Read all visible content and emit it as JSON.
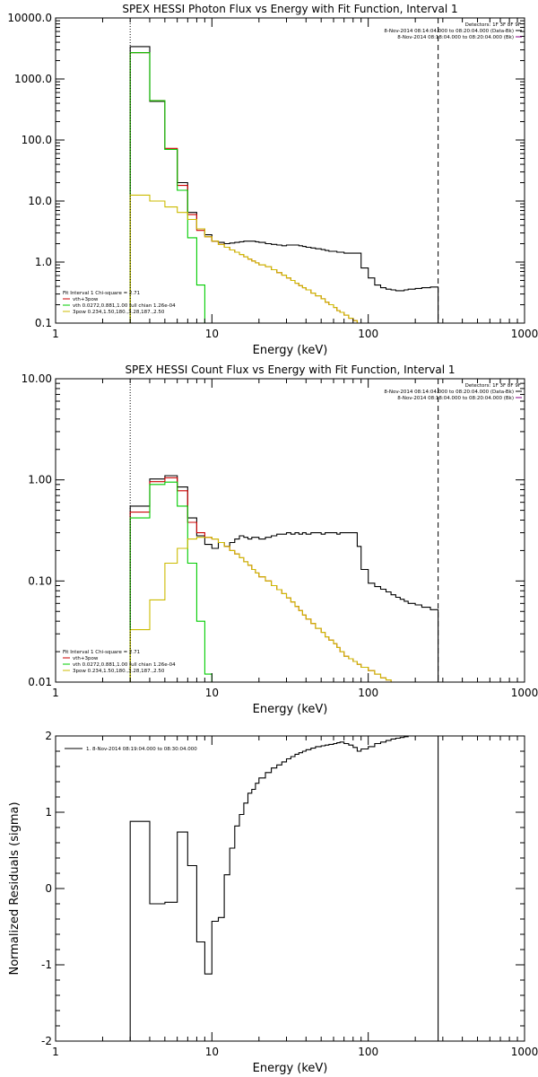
{
  "chart_data": [
    {
      "type": "line",
      "title": "SPEX HESSI Photon Flux vs Energy with Fit Function, Interval 1",
      "xlabel": "Energy (keV)",
      "ylabel": "",
      "xscale": "log",
      "yscale": "log",
      "xlim": [
        1,
        1000
      ],
      "ylim": [
        0.1,
        10000
      ],
      "xticks": [
        {
          "v": 1,
          "label": "1"
        },
        {
          "v": 10,
          "label": "10"
        },
        {
          "v": 100,
          "label": "100"
        },
        {
          "v": 1000,
          "label": "1000"
        }
      ],
      "yticks": [
        {
          "v": 0.1,
          "label": "0.1"
        },
        {
          "v": 1,
          "label": "1.0"
        },
        {
          "v": 10,
          "label": "10.0"
        },
        {
          "v": 100,
          "label": "100.0"
        },
        {
          "v": 1000,
          "label": "1000.0"
        },
        {
          "v": 10000,
          "label": "10000.0"
        }
      ],
      "dotted_line_x": 3,
      "dashed_line_x": 280,
      "annotations": [
        "Detectors: 1F 3F 8F 9F",
        "8-Nov-2014 08:14:04.000 to 08:20:04.000 (Data-Bk)",
        "8-Nov-2014 08:18:04.000 to 08:20:04.000 (Bk)"
      ],
      "legend_title": "Fit Interval  1    Chi-square = 2.71",
      "legend": [
        {
          "label": "vth+3pow",
          "color": "#cc0000"
        },
        {
          "label": "vth 0.0272,0.881,1.00  full chian 1.26e-04",
          "color": "#00cc00"
        },
        {
          "label": "3pow 0.234,1.50,180.,3.28,187.,2.50",
          "color": "#ccbb00"
        }
      ],
      "series": [
        {
          "color": "#000000",
          "edges": [
            3,
            4,
            5,
            6,
            7,
            8,
            9,
            10,
            11,
            12,
            13,
            14,
            15,
            16,
            17,
            18,
            19,
            20,
            22,
            24,
            26,
            28,
            30,
            32,
            34,
            36,
            38,
            40,
            43,
            46,
            50,
            53,
            56,
            60,
            63,
            66,
            70,
            75,
            80,
            85,
            90,
            100,
            110,
            120,
            130,
            140,
            150,
            160,
            170,
            180,
            200,
            220,
            250,
            280
          ],
          "values": [
            3400,
            430,
            70,
            20,
            6.5,
            3.5,
            2.8,
            2.2,
            2.1,
            2.0,
            2.05,
            2.1,
            2.15,
            2.2,
            2.2,
            2.2,
            2.15,
            2.1,
            2.0,
            1.95,
            1.9,
            1.85,
            1.9,
            1.9,
            1.9,
            1.85,
            1.8,
            1.75,
            1.7,
            1.65,
            1.6,
            1.55,
            1.5,
            1.5,
            1.45,
            1.45,
            1.4,
            1.4,
            1.4,
            1.4,
            0.8,
            0.55,
            0.42,
            0.38,
            0.36,
            0.35,
            0.34,
            0.34,
            0.35,
            0.36,
            0.37,
            0.38,
            0.39
          ]
        },
        {
          "color": "#cc0000",
          "edges": [
            3,
            4,
            5,
            6,
            7,
            8,
            9,
            10,
            11,
            12,
            13,
            14,
            15,
            16,
            17,
            18,
            19,
            20,
            22,
            24,
            26,
            28,
            30,
            32,
            34,
            36,
            38,
            40,
            43,
            46,
            50,
            53,
            56,
            60,
            63,
            66,
            70,
            75,
            80,
            85,
            90,
            100
          ],
          "values": [
            2700,
            440,
            73,
            18,
            6.0,
            3.3,
            2.6,
            2.2,
            1.95,
            1.75,
            1.58,
            1.45,
            1.33,
            1.22,
            1.12,
            1.04,
            0.97,
            0.9,
            0.84,
            0.75,
            0.67,
            0.61,
            0.55,
            0.5,
            0.45,
            0.41,
            0.38,
            0.35,
            0.31,
            0.28,
            0.25,
            0.22,
            0.2,
            0.18,
            0.16,
            0.15,
            0.135,
            0.12,
            0.11,
            0.1,
            0.1
          ]
        },
        {
          "color": "#00cc00",
          "edges": [
            3,
            4,
            5,
            6,
            7,
            8,
            9
          ],
          "values": [
            2700,
            440,
            70,
            15,
            2.5,
            0.42
          ]
        },
        {
          "color": "#ccbb00",
          "edges": [
            3,
            4,
            5,
            6,
            7,
            8,
            9,
            10,
            11,
            12,
            13,
            14,
            15,
            16,
            17,
            18,
            19,
            20,
            22,
            24,
            26,
            28,
            30,
            32,
            34,
            36,
            38,
            40,
            43,
            46,
            50,
            53,
            56,
            60,
            63,
            66,
            70,
            75,
            80,
            85,
            90,
            100
          ],
          "values": [
            12.5,
            10,
            8,
            6.5,
            5.0,
            3.5,
            2.6,
            2.2,
            1.95,
            1.75,
            1.58,
            1.45,
            1.33,
            1.22,
            1.12,
            1.04,
            0.97,
            0.9,
            0.84,
            0.75,
            0.67,
            0.61,
            0.55,
            0.5,
            0.45,
            0.41,
            0.38,
            0.35,
            0.31,
            0.28,
            0.25,
            0.22,
            0.2,
            0.18,
            0.16,
            0.15,
            0.135,
            0.12,
            0.11,
            0.1,
            0.1
          ]
        }
      ]
    },
    {
      "type": "line",
      "title": "SPEX HESSI Count Flux vs Energy with Fit Function, Interval 1",
      "xlabel": "Energy (keV)",
      "ylabel": "",
      "xscale": "log",
      "yscale": "log",
      "xlim": [
        1,
        1000
      ],
      "ylim": [
        0.01,
        10
      ],
      "xticks": [
        {
          "v": 1,
          "label": "1"
        },
        {
          "v": 10,
          "label": "10"
        },
        {
          "v": 100,
          "label": "100"
        },
        {
          "v": 1000,
          "label": "1000"
        }
      ],
      "yticks": [
        {
          "v": 0.01,
          "label": "0.01"
        },
        {
          "v": 0.1,
          "label": "0.10"
        },
        {
          "v": 1,
          "label": "1.00"
        },
        {
          "v": 10,
          "label": "10.00"
        }
      ],
      "dotted_line_x": 3,
      "dashed_line_x": 280,
      "annotations": [
        "Detectors: 1F 3F 8F 9F",
        "8-Nov-2014 08:14:04.000 to 08:20:04.000 (Data-Bk)",
        "8-Nov-2014 08:18:04.000 to 08:20:04.000 (Bk)"
      ],
      "legend_title": "Fit Interval  1    Chi-square = 2.71",
      "legend": [
        {
          "label": "vth+3pow",
          "color": "#cc0000"
        },
        {
          "label": "vth 0.0272,0.881,1.00  full chian 1.26e-04",
          "color": "#00cc00"
        },
        {
          "label": "3pow 0.234,1.50,180.,3.28,187.,2.50",
          "color": "#ccbb00"
        }
      ],
      "series": [
        {
          "color": "#000000",
          "edges": [
            3,
            4,
            5,
            6,
            7,
            8,
            9,
            10,
            11,
            12,
            13,
            14,
            15,
            16,
            17,
            18,
            19,
            20,
            22,
            24,
            26,
            28,
            30,
            32,
            34,
            36,
            38,
            40,
            43,
            46,
            50,
            53,
            56,
            60,
            63,
            66,
            70,
            75,
            80,
            85,
            90,
            100,
            110,
            120,
            130,
            140,
            150,
            160,
            170,
            180,
            200,
            220,
            250,
            280
          ],
          "values": [
            0.55,
            1.02,
            1.1,
            0.85,
            0.42,
            0.28,
            0.23,
            0.21,
            0.24,
            0.22,
            0.24,
            0.26,
            0.28,
            0.27,
            0.26,
            0.27,
            0.27,
            0.26,
            0.27,
            0.28,
            0.29,
            0.29,
            0.3,
            0.29,
            0.3,
            0.29,
            0.3,
            0.29,
            0.3,
            0.3,
            0.29,
            0.3,
            0.3,
            0.3,
            0.29,
            0.3,
            0.3,
            0.3,
            0.3,
            0.22,
            0.13,
            0.095,
            0.088,
            0.083,
            0.078,
            0.073,
            0.069,
            0.066,
            0.063,
            0.06,
            0.058,
            0.055,
            0.052
          ]
        },
        {
          "color": "#cc0000",
          "edges": [
            3,
            4,
            5,
            6,
            7,
            8,
            9,
            10,
            11,
            12,
            13,
            14,
            15,
            16,
            17,
            18,
            19,
            20,
            22,
            24,
            26,
            28,
            30,
            32,
            34,
            36,
            38,
            40,
            43,
            46,
            50,
            53,
            56,
            60,
            63,
            66,
            70,
            75,
            80,
            85,
            90,
            100,
            110,
            120,
            130,
            140
          ],
          "values": [
            0.48,
            0.96,
            1.05,
            0.78,
            0.38,
            0.3,
            0.27,
            0.26,
            0.24,
            0.22,
            0.2,
            0.185,
            0.17,
            0.155,
            0.143,
            0.13,
            0.12,
            0.11,
            0.1,
            0.09,
            0.082,
            0.075,
            0.068,
            0.062,
            0.056,
            0.051,
            0.046,
            0.042,
            0.038,
            0.034,
            0.031,
            0.028,
            0.026,
            0.024,
            0.022,
            0.02,
            0.018,
            0.017,
            0.016,
            0.015,
            0.014,
            0.013,
            0.012,
            0.011,
            0.0105
          ]
        },
        {
          "color": "#00cc00",
          "edges": [
            3,
            4,
            5,
            6,
            7,
            8,
            9,
            10
          ],
          "values": [
            0.42,
            0.9,
            0.95,
            0.55,
            0.15,
            0.04,
            0.012
          ]
        },
        {
          "color": "#ccbb00",
          "edges": [
            3,
            4,
            5,
            6,
            7,
            8,
            9,
            10,
            11,
            12,
            13,
            14,
            15,
            16,
            17,
            18,
            19,
            20,
            22,
            24,
            26,
            28,
            30,
            32,
            34,
            36,
            38,
            40,
            43,
            46,
            50,
            53,
            56,
            60,
            63,
            66,
            70,
            75,
            80,
            85,
            90,
            100,
            110,
            120,
            130,
            140
          ],
          "values": [
            0.033,
            0.065,
            0.15,
            0.21,
            0.26,
            0.27,
            0.27,
            0.26,
            0.24,
            0.22,
            0.2,
            0.185,
            0.17,
            0.155,
            0.143,
            0.13,
            0.12,
            0.11,
            0.1,
            0.09,
            0.082,
            0.075,
            0.068,
            0.062,
            0.056,
            0.051,
            0.046,
            0.042,
            0.038,
            0.034,
            0.031,
            0.028,
            0.026,
            0.024,
            0.022,
            0.02,
            0.018,
            0.017,
            0.016,
            0.015,
            0.014,
            0.013,
            0.012,
            0.011,
            0.0105
          ]
        }
      ]
    },
    {
      "type": "line",
      "title": "",
      "xlabel": "Energy (keV)",
      "ylabel": "Normalized Residuals (sigma)",
      "xscale": "log",
      "yscale": "linear",
      "xlim": [
        1,
        1000
      ],
      "ylim": [
        -2,
        2
      ],
      "xticks": [
        {
          "v": 1,
          "label": "1"
        },
        {
          "v": 10,
          "label": "10"
        },
        {
          "v": 100,
          "label": "100"
        },
        {
          "v": 1000,
          "label": "1000"
        }
      ],
      "yticks": [
        {
          "v": -2,
          "label": "-2"
        },
        {
          "v": -1,
          "label": "-1"
        },
        {
          "v": 0,
          "label": "0"
        },
        {
          "v": 1,
          "label": "1"
        },
        {
          "v": 2,
          "label": "2"
        }
      ],
      "legend": [
        {
          "label": "1.  8-Nov-2014 08:19:04.000 to 08:30:04.000",
          "color": "#000000"
        }
      ],
      "series": [
        {
          "color": "#000000",
          "edges": [
            3,
            4,
            5,
            6,
            7,
            8,
            9,
            10,
            11,
            12,
            13,
            14,
            15,
            16,
            17,
            18,
            19,
            20,
            22,
            24,
            26,
            28,
            30,
            32,
            34,
            36,
            38,
            40,
            43,
            46,
            50,
            53,
            56,
            60,
            63,
            66,
            70,
            75,
            80,
            85,
            90,
            100,
            110,
            120,
            130,
            140,
            150,
            160,
            170,
            180,
            200,
            220,
            250,
            280
          ],
          "values": [
            0.88,
            -0.2,
            -0.18,
            0.74,
            0.3,
            -0.7,
            -1.12,
            -0.43,
            -0.38,
            0.18,
            0.53,
            0.82,
            0.97,
            1.12,
            1.25,
            1.3,
            1.38,
            1.45,
            1.52,
            1.58,
            1.62,
            1.66,
            1.7,
            1.73,
            1.76,
            1.78,
            1.8,
            1.82,
            1.84,
            1.86,
            1.87,
            1.88,
            1.89,
            1.9,
            1.91,
            1.92,
            1.9,
            1.88,
            1.85,
            1.8,
            1.83,
            1.86,
            1.9,
            1.92,
            1.94,
            1.96,
            1.97,
            1.98,
            1.99,
            2.0,
            2.0,
            2.0,
            2.0
          ],
          "drop_at": 280,
          "drop_to": -2
        }
      ]
    }
  ]
}
